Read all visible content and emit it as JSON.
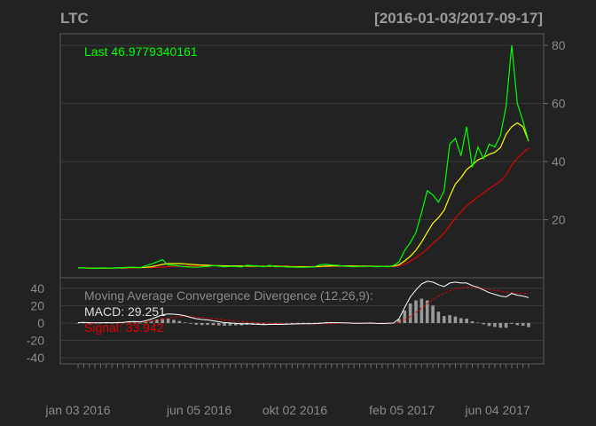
{
  "chart_data": {
    "type": "line",
    "symbol": "LTC",
    "date_range": "[2016-01-03/2017-09-17]",
    "x_ticks": [
      "jan 03 2016",
      "jun 05 2016",
      "okt 02 2016",
      "feb 05 2017",
      "jun 04 2017"
    ],
    "colors": {
      "background": "#222222",
      "price": "#00ff00",
      "ma_short": "#ffff00",
      "ma_long": "#e00000",
      "macd": "#ffffff",
      "signal": "#e00000",
      "histogram": "#999999",
      "grid": "#3a3a3a",
      "axis_text": "#8a8a8a"
    },
    "main_panel": {
      "y_ticks": [
        20,
        40,
        60,
        80
      ],
      "ylim": [
        0,
        84
      ],
      "grid": true,
      "last_label": "Last 46.9779340161",
      "series": {
        "price": [
          3.4,
          3.4,
          3.3,
          3.2,
          3.4,
          3.4,
          3.3,
          3.4,
          3.5,
          3.6,
          3.6,
          3.4,
          4.1,
          4.7,
          5.5,
          6.2,
          4.4,
          4.3,
          4.0,
          3.8,
          3.7,
          3.6,
          3.8,
          3.9,
          4.2,
          4.0,
          3.8,
          3.9,
          3.9,
          3.7,
          4.3,
          4.2,
          4.1,
          3.8,
          4.3,
          3.8,
          3.9,
          3.7,
          3.7,
          3.6,
          3.6,
          3.7,
          3.8,
          4.5,
          4.6,
          4.4,
          4.3,
          4.0,
          3.9,
          3.8,
          3.9,
          3.9,
          4.0,
          3.8,
          3.9,
          3.8,
          4.2,
          5.5,
          9.4,
          12.1,
          15.6,
          22.5,
          30.0,
          28.5,
          26.0,
          30.0,
          46.0,
          48.0,
          42.0,
          52.0,
          38.0,
          45.0,
          41.0,
          46.0,
          45.0,
          49.0,
          59.0,
          80.0,
          60.0,
          54.0,
          47.0
        ],
        "ma_short": [
          3.4,
          3.4,
          3.3,
          3.3,
          3.3,
          3.3,
          3.3,
          3.4,
          3.4,
          3.5,
          3.5,
          3.5,
          3.6,
          3.8,
          4.2,
          4.6,
          4.9,
          4.9,
          4.9,
          4.8,
          4.6,
          4.5,
          4.4,
          4.3,
          4.2,
          4.2,
          4.1,
          4.1,
          4.1,
          4.0,
          4.0,
          4.0,
          4.0,
          3.9,
          4.0,
          4.0,
          3.9,
          3.9,
          3.8,
          3.8,
          3.8,
          3.8,
          3.8,
          3.9,
          4.0,
          4.1,
          4.1,
          4.1,
          4.1,
          4.0,
          4.0,
          4.0,
          4.0,
          3.9,
          3.9,
          3.9,
          4.0,
          4.5,
          5.8,
          7.4,
          9.5,
          12.3,
          15.6,
          18.8,
          20.7,
          23.2,
          28.0,
          32.3,
          34.5,
          37.2,
          38.8,
          40.6,
          41.4,
          42.5,
          43.2,
          44.8,
          49.4,
          52.0,
          53.3,
          52.0,
          47.0
        ],
        "ma_long": [
          3.4,
          3.4,
          3.4,
          3.3,
          3.3,
          3.3,
          3.3,
          3.3,
          3.3,
          3.4,
          3.4,
          3.4,
          3.5,
          3.5,
          3.6,
          3.7,
          3.8,
          3.9,
          3.9,
          4.0,
          4.0,
          4.0,
          4.1,
          4.1,
          4.1,
          4.1,
          4.1,
          4.1,
          4.1,
          4.1,
          4.1,
          4.1,
          4.1,
          4.0,
          4.0,
          4.0,
          4.0,
          4.0,
          3.9,
          3.9,
          3.9,
          3.9,
          3.9,
          3.9,
          3.9,
          3.9,
          4.0,
          4.0,
          4.0,
          4.0,
          4.0,
          4.0,
          4.0,
          3.9,
          3.9,
          3.9,
          3.9,
          4.1,
          4.7,
          5.7,
          6.9,
          8.3,
          10.0,
          11.8,
          13.5,
          15.4,
          18.0,
          20.6,
          22.6,
          24.8,
          26.3,
          27.9,
          29.2,
          30.7,
          31.9,
          33.3,
          35.2,
          38.8,
          41.2,
          43.0,
          44.6
        ]
      }
    },
    "macd_panel": {
      "title": "Moving Average Convergence Divergence (12,26,9):",
      "macd_label": "MACD: 29.251",
      "signal_label": "Signal: 33.942",
      "y_ticks": [
        40,
        20,
        0,
        -20,
        -40
      ],
      "ylim": [
        -47,
        52
      ],
      "grid": true,
      "macd": [
        0.5,
        0.8,
        0.4,
        0.2,
        0.3,
        0.5,
        0.3,
        0.5,
        0.8,
        1.5,
        1.8,
        1.2,
        2.5,
        4.5,
        7.0,
        9.5,
        10.5,
        10.2,
        9.5,
        8.2,
        6.5,
        5.0,
        4.0,
        3.5,
        2.5,
        1.5,
        0.5,
        0.0,
        -0.5,
        -1.0,
        -0.8,
        -1.2,
        -1.5,
        -1.8,
        -1.6,
        -1.5,
        -1.6,
        -1.4,
        -1.2,
        -1.0,
        -0.9,
        -0.8,
        -0.7,
        -0.3,
        0.3,
        0.5,
        0.4,
        0.2,
        0.0,
        -0.3,
        -0.3,
        -0.2,
        -0.1,
        -0.5,
        -0.6,
        -0.4,
        -0.1,
        5.0,
        18.0,
        30.0,
        38.0,
        45.0,
        48.0,
        47.0,
        44.0,
        42.0,
        46.0,
        47.0,
        46.0,
        46.0,
        43.0,
        41.0,
        38.0,
        35.0,
        33.0,
        31.0,
        30.0,
        34.0,
        32.0,
        31.0,
        29.251
      ],
      "signal": [
        0.5,
        0.6,
        0.6,
        0.5,
        0.4,
        0.4,
        0.4,
        0.4,
        0.5,
        0.7,
        1.0,
        1.1,
        1.4,
        2.0,
        3.0,
        4.3,
        5.5,
        6.5,
        7.2,
        7.5,
        7.3,
        6.9,
        6.3,
        5.7,
        5.0,
        4.3,
        3.6,
        2.9,
        2.2,
        1.6,
        1.1,
        0.6,
        0.2,
        -0.2,
        -0.5,
        -0.7,
        -0.9,
        -1.0,
        -1.1,
        -1.1,
        -1.1,
        -1.0,
        -1.0,
        -0.9,
        -0.7,
        -0.5,
        -0.3,
        -0.2,
        -0.1,
        -0.1,
        -0.2,
        -0.2,
        -0.2,
        -0.2,
        -0.3,
        -0.3,
        -0.3,
        0.5,
        3.5,
        7.5,
        12.0,
        17.0,
        22.0,
        27.0,
        31.0,
        34.0,
        37.0,
        39.5,
        40.5,
        41.0,
        41.0,
        40.5,
        39.5,
        38.5,
        37.5,
        36.5,
        35.5,
        35.0,
        34.5,
        34.2,
        33.942
      ]
    }
  }
}
